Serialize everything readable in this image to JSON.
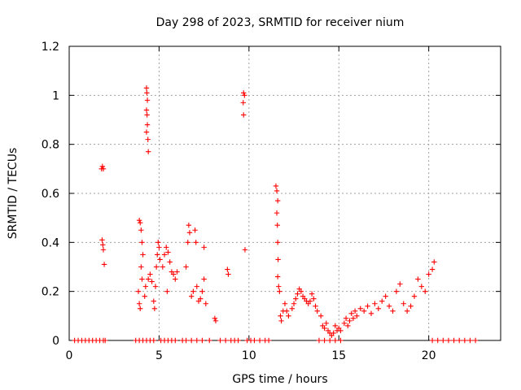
{
  "chart_data": {
    "type": "scatter",
    "title": "Day 298 of 2023, SRMTID for receiver nium",
    "xlabel": "GPS time / hours",
    "ylabel": "SRMTID / TECUs",
    "xlim": [
      0,
      24
    ],
    "ylim": [
      0,
      1.2
    ],
    "xticks": [
      0,
      5,
      10,
      15,
      20
    ],
    "xtick_labels": [
      "0",
      "5",
      "10",
      "15",
      "20"
    ],
    "yticks": [
      0,
      0.2,
      0.4,
      0.6,
      0.8,
      1.0,
      1.2
    ],
    "ytick_labels": [
      "0",
      "0.2",
      "0.4",
      "0.6",
      "0.8",
      "1",
      "1.2"
    ],
    "grid": true,
    "marker": "+",
    "series": [
      {
        "name": "SRMTID",
        "color": "#ff0000",
        "points": [
          [
            0.3,
            0
          ],
          [
            0.5,
            0
          ],
          [
            0.7,
            0
          ],
          [
            0.9,
            0
          ],
          [
            1.1,
            0
          ],
          [
            1.3,
            0
          ],
          [
            1.5,
            0
          ],
          [
            1.7,
            0
          ],
          [
            1.9,
            0
          ],
          [
            2.0,
            0
          ],
          [
            1.8,
            0.7
          ],
          [
            1.85,
            0.71
          ],
          [
            1.9,
            0.7
          ],
          [
            1.83,
            0.41
          ],
          [
            1.87,
            0.39
          ],
          [
            1.9,
            0.37
          ],
          [
            1.95,
            0.31
          ],
          [
            3.7,
            0
          ],
          [
            3.9,
            0
          ],
          [
            4.1,
            0
          ],
          [
            4.3,
            0
          ],
          [
            4.5,
            0
          ],
          [
            4.7,
            0
          ],
          [
            3.85,
            0.2
          ],
          [
            3.9,
            0.15
          ],
          [
            3.95,
            0.13
          ],
          [
            3.9,
            0.49
          ],
          [
            3.95,
            0.48
          ],
          [
            4.0,
            0.45
          ],
          [
            4.05,
            0.4
          ],
          [
            4.1,
            0.35
          ],
          [
            4.0,
            0.3
          ],
          [
            4.05,
            0.25
          ],
          [
            4.2,
            0.18
          ],
          [
            4.25,
            0.22
          ],
          [
            4.3,
            1.03
          ],
          [
            4.32,
            1.01
          ],
          [
            4.35,
            0.98
          ],
          [
            4.3,
            0.94
          ],
          [
            4.33,
            0.92
          ],
          [
            4.35,
            0.88
          ],
          [
            4.3,
            0.85
          ],
          [
            4.38,
            0.82
          ],
          [
            4.4,
            0.77
          ],
          [
            4.4,
            0.25
          ],
          [
            4.5,
            0.27
          ],
          [
            4.6,
            0.24
          ],
          [
            4.7,
            0.16
          ],
          [
            4.75,
            0.13
          ],
          [
            4.8,
            0.22
          ],
          [
            4.85,
            0.3
          ],
          [
            4.9,
            0.35
          ],
          [
            4.95,
            0.4
          ],
          [
            5.0,
            0.38
          ],
          [
            5.05,
            0.33
          ],
          [
            5.1,
            0
          ],
          [
            5.3,
            0
          ],
          [
            5.5,
            0
          ],
          [
            5.7,
            0
          ],
          [
            5.9,
            0
          ],
          [
            5.2,
            0.3
          ],
          [
            5.3,
            0.35
          ],
          [
            5.4,
            0.38
          ],
          [
            5.5,
            0.36
          ],
          [
            5.6,
            0.32
          ],
          [
            5.7,
            0.28
          ],
          [
            5.8,
            0.27
          ],
          [
            5.9,
            0.25
          ],
          [
            6.0,
            0.28
          ],
          [
            5.45,
            0.2
          ],
          [
            6.3,
            0
          ],
          [
            6.5,
            0
          ],
          [
            6.8,
            0
          ],
          [
            7.1,
            0
          ],
          [
            7.4,
            0
          ],
          [
            7.8,
            0
          ],
          [
            6.5,
            0.3
          ],
          [
            6.6,
            0.4
          ],
          [
            6.65,
            0.47
          ],
          [
            6.7,
            0.44
          ],
          [
            6.8,
            0.18
          ],
          [
            6.9,
            0.2
          ],
          [
            7.0,
            0.45
          ],
          [
            7.05,
            0.4
          ],
          [
            7.1,
            0.22
          ],
          [
            7.2,
            0.16
          ],
          [
            7.3,
            0.17
          ],
          [
            7.4,
            0.2
          ],
          [
            7.5,
            0.25
          ],
          [
            7.5,
            0.38
          ],
          [
            7.6,
            0.15
          ],
          [
            8.1,
            0.09
          ],
          [
            8.15,
            0.08
          ],
          [
            8.4,
            0
          ],
          [
            8.7,
            0
          ],
          [
            8.8,
            0.29
          ],
          [
            8.85,
            0.27
          ],
          [
            9.0,
            0
          ],
          [
            9.2,
            0
          ],
          [
            9.4,
            0
          ],
          [
            9.7,
            1.01
          ],
          [
            9.75,
            1.0
          ],
          [
            9.68,
            0.97
          ],
          [
            9.7,
            0.92
          ],
          [
            9.78,
            0.37
          ],
          [
            9.9,
            0
          ],
          [
            10.1,
            0
          ],
          [
            10.3,
            0
          ],
          [
            10.6,
            0
          ],
          [
            10.9,
            0
          ],
          [
            11.1,
            0
          ],
          [
            11.5,
            0.63
          ],
          [
            11.55,
            0.61
          ],
          [
            11.6,
            0.57
          ],
          [
            11.55,
            0.52
          ],
          [
            11.58,
            0.47
          ],
          [
            11.6,
            0.4
          ],
          [
            11.62,
            0.33
          ],
          [
            11.6,
            0.26
          ],
          [
            11.65,
            0.22
          ],
          [
            11.7,
            0.2
          ],
          [
            11.75,
            0.1
          ],
          [
            11.8,
            0.08
          ],
          [
            11.9,
            0.12
          ],
          [
            12.0,
            0.15
          ],
          [
            12.1,
            0.12
          ],
          [
            12.2,
            0.1
          ],
          [
            12.4,
            0.13
          ],
          [
            12.5,
            0.15
          ],
          [
            12.6,
            0.17
          ],
          [
            12.7,
            0.19
          ],
          [
            12.8,
            0.21
          ],
          [
            12.9,
            0.2
          ],
          [
            13.0,
            0.18
          ],
          [
            13.1,
            0.17
          ],
          [
            13.2,
            0.16
          ],
          [
            13.3,
            0.15
          ],
          [
            13.4,
            0.16
          ],
          [
            13.5,
            0.19
          ],
          [
            13.6,
            0.17
          ],
          [
            13.7,
            0.14
          ],
          [
            13.8,
            0.12
          ],
          [
            14.0,
            0.1
          ],
          [
            14.1,
            0.06
          ],
          [
            14.2,
            0.05
          ],
          [
            14.3,
            0.07
          ],
          [
            14.4,
            0.04
          ],
          [
            14.5,
            0.03
          ],
          [
            14.6,
            0.02
          ],
          [
            14.7,
            0.03
          ],
          [
            14.8,
            0.06
          ],
          [
            14.9,
            0.04
          ],
          [
            15.0,
            0.05
          ],
          [
            15.1,
            0.04
          ],
          [
            15.3,
            0.07
          ],
          [
            15.4,
            0.09
          ],
          [
            15.5,
            0.06
          ],
          [
            15.6,
            0.08
          ],
          [
            15.7,
            0.11
          ],
          [
            15.8,
            0.09
          ],
          [
            15.9,
            0.12
          ],
          [
            16.0,
            0.1
          ],
          [
            16.2,
            0.13
          ],
          [
            16.4,
            0.12
          ],
          [
            16.6,
            0.14
          ],
          [
            16.8,
            0.11
          ],
          [
            17.0,
            0.15
          ],
          [
            17.2,
            0.13
          ],
          [
            17.4,
            0.16
          ],
          [
            17.6,
            0.18
          ],
          [
            17.8,
            0.14
          ],
          [
            18.0,
            0.12
          ],
          [
            18.2,
            0.2
          ],
          [
            18.4,
            0.23
          ],
          [
            18.6,
            0.15
          ],
          [
            18.8,
            0.12
          ],
          [
            19.0,
            0.14
          ],
          [
            19.2,
            0.18
          ],
          [
            19.4,
            0.25
          ],
          [
            19.6,
            0.22
          ],
          [
            19.8,
            0.2
          ],
          [
            20.0,
            0.27
          ],
          [
            20.2,
            0.29
          ],
          [
            20.3,
            0.32
          ],
          [
            13.9,
            0
          ],
          [
            14.2,
            0
          ],
          [
            14.5,
            0
          ],
          [
            14.8,
            0
          ],
          [
            15.1,
            0
          ],
          [
            20.2,
            0
          ],
          [
            20.5,
            0
          ],
          [
            20.8,
            0
          ],
          [
            21.1,
            0
          ],
          [
            21.4,
            0
          ],
          [
            21.7,
            0
          ],
          [
            22.0,
            0
          ],
          [
            22.3,
            0
          ],
          [
            22.6,
            0
          ]
        ]
      }
    ]
  }
}
